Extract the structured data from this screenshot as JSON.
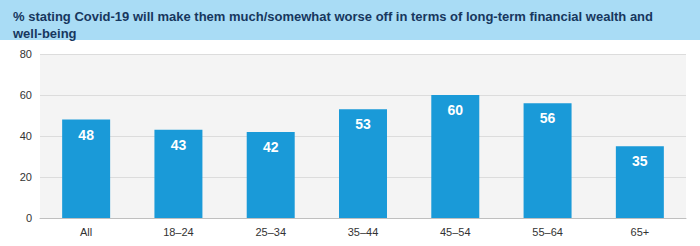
{
  "chart_data": {
    "type": "bar",
    "title": "% stating Covid-19 will make them much/somewhat worse off in terms of long-term financial wealth and well-being",
    "categories": [
      "All",
      "18–24",
      "25–34",
      "35–44",
      "45–54",
      "55–64",
      "65+"
    ],
    "values": [
      48,
      43,
      42,
      53,
      60,
      56,
      35
    ],
    "color": "#1a9ad8",
    "ylim": [
      0,
      80
    ],
    "yticks": [
      0,
      20,
      40,
      60,
      80
    ],
    "grid": true,
    "data_labels": true
  }
}
